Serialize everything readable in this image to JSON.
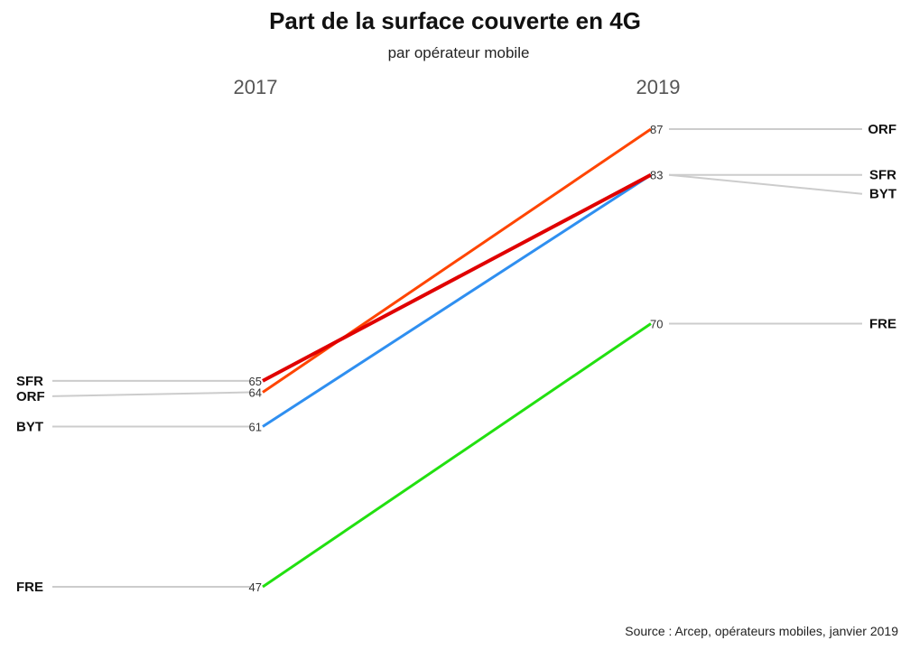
{
  "chart_data": {
    "type": "line",
    "title": "Part de la surface couverte en 4G",
    "subtitle": "par opérateur mobile",
    "x": [
      "2017",
      "2019"
    ],
    "series": [
      {
        "name": "ORF",
        "values": [
          64,
          87
        ],
        "color": "#ff4500"
      },
      {
        "name": "SFR",
        "values": [
          65,
          83
        ],
        "color": "#e00000"
      },
      {
        "name": "BYT",
        "values": [
          61,
          83
        ],
        "color": "#2f8ff0"
      },
      {
        "name": "FRE",
        "values": [
          47,
          70
        ],
        "color": "#22e010"
      }
    ],
    "ylim": [
      47,
      87
    ],
    "grid": false,
    "source": "Source : Arcep, opérateurs mobiles, janvier 2019"
  }
}
